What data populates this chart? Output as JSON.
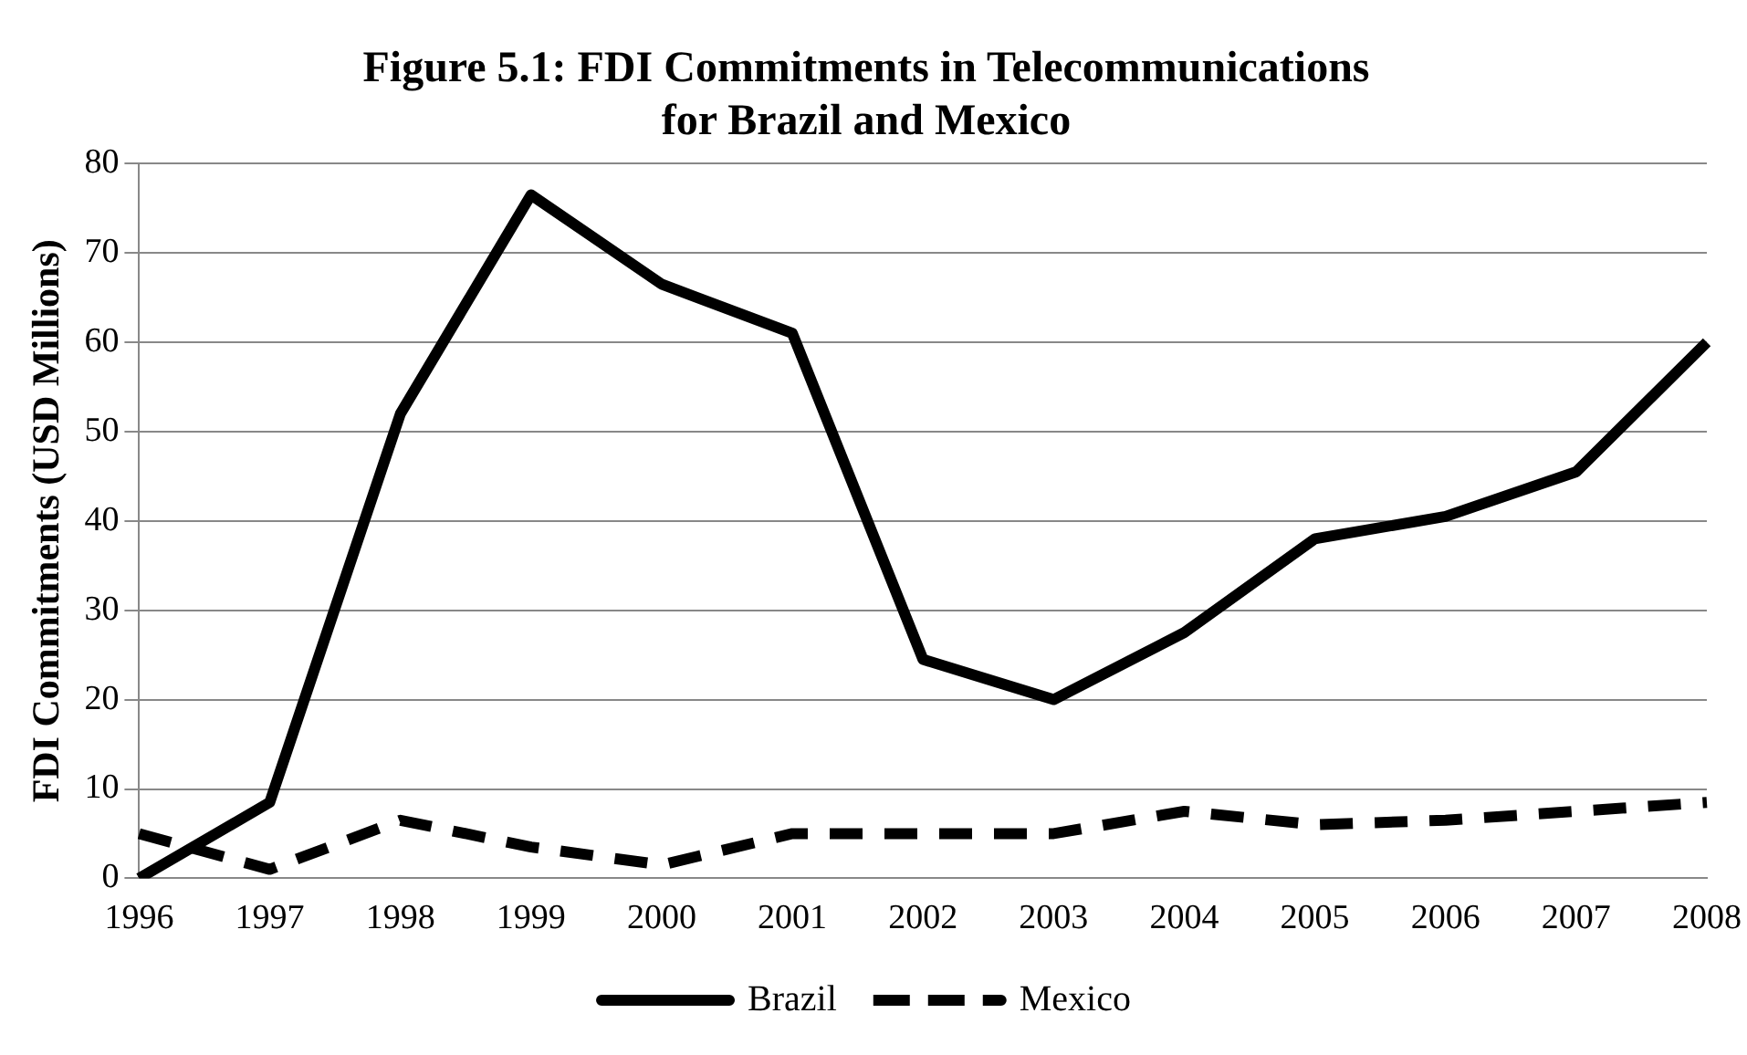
{
  "chart_data": {
    "type": "line",
    "title": "Figure 5.1: FDI Commitments in Telecommunications for Brazil and Mexico",
    "ylabel": "FDI Commitments (USD Millions)",
    "categories": [
      "1996",
      "1997",
      "1998",
      "1999",
      "2000",
      "2001",
      "2002",
      "2003",
      "2004",
      "2005",
      "2006",
      "2007",
      "2008"
    ],
    "series": [
      {
        "name": "Brazil",
        "color": "#000000",
        "line_style": "solid",
        "values": [
          0,
          8.5,
          52,
          76.5,
          66.5,
          61,
          24.5,
          20,
          27.5,
          38,
          40.5,
          45.5,
          60
        ]
      },
      {
        "name": "Mexico",
        "color": "#000000",
        "line_style": "dashed",
        "values": [
          5,
          1,
          6.5,
          3.5,
          1.5,
          5,
          5,
          5,
          7.5,
          6,
          6.5,
          7.5,
          8.5
        ]
      }
    ],
    "ylim": [
      0,
      80
    ],
    "yticks": [
      0,
      10,
      20,
      30,
      40,
      50,
      60,
      70,
      80
    ],
    "grid": "y",
    "legend": "bottom",
    "marker": "none"
  }
}
